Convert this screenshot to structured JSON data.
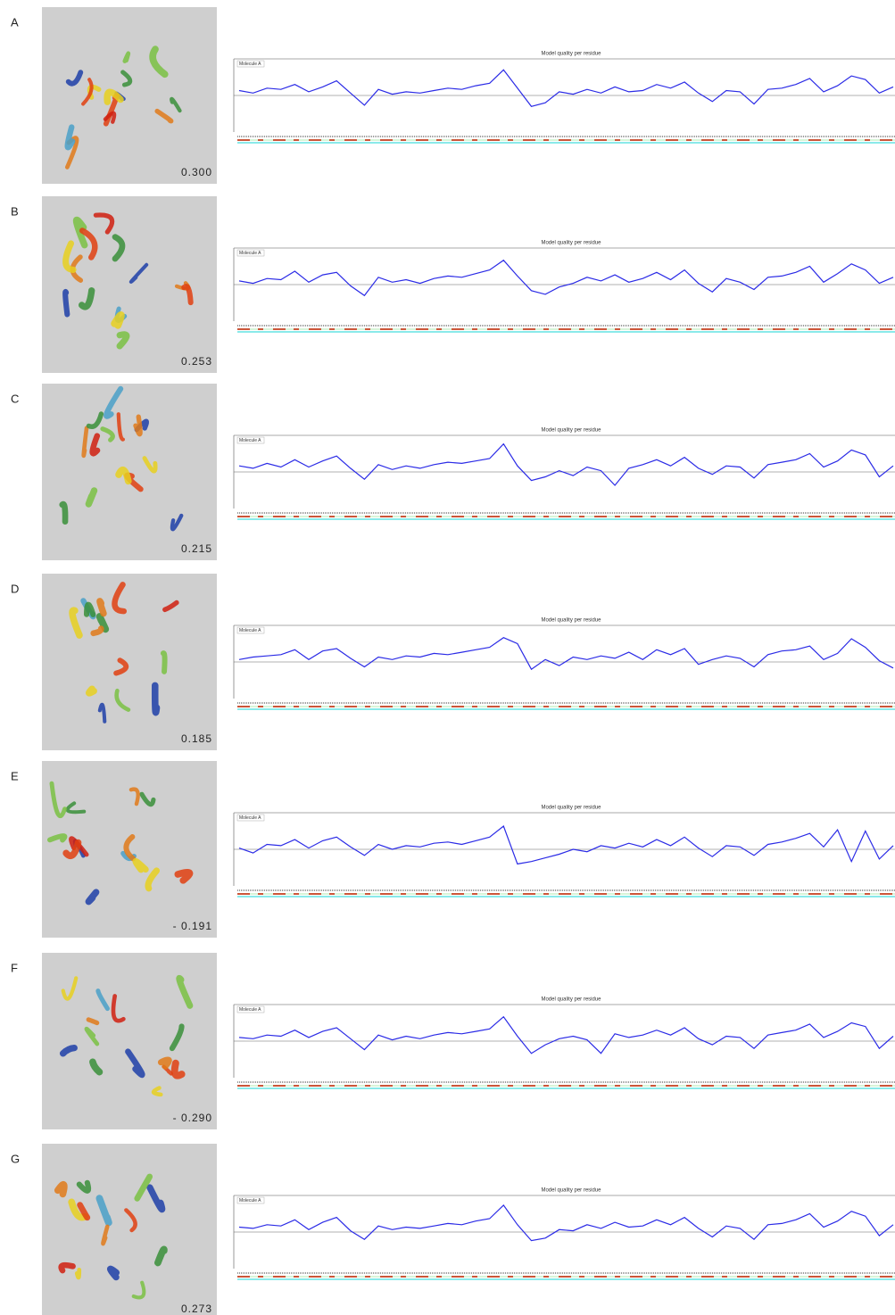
{
  "panels": [
    {
      "label": "A",
      "score": "0.300"
    },
    {
      "label": "B",
      "score": "0.253"
    },
    {
      "label": "C",
      "score": "0.215"
    },
    {
      "label": "D",
      "score": "0.185"
    },
    {
      "label": "E",
      "score": "- 0.191"
    },
    {
      "label": "F",
      "score": "- 0.290"
    },
    {
      "label": "G",
      "score": "0.273"
    }
  ],
  "chart_data": [
    {
      "type": "line",
      "title": "Model quality per residue",
      "ylim": [
        -3,
        3
      ],
      "series": [
        {
          "name": "Molecule A",
          "color": "#2b2be6",
          "values": [
            0.4,
            0.2,
            0.6,
            0.5,
            0.9,
            0.3,
            0.7,
            1.2,
            0.2,
            -0.8,
            0.5,
            0.1,
            0.3,
            0.2,
            0.4,
            0.6,
            0.5,
            0.8,
            1.0,
            2.1,
            0.6,
            -0.9,
            -0.6,
            0.3,
            0.1,
            0.5,
            0.2,
            0.7,
            0.3,
            0.4,
            0.9,
            0.6,
            1.1,
            0.2,
            -0.5,
            0.4,
            0.3,
            -0.7,
            0.5,
            0.6,
            0.9,
            1.4,
            0.3,
            0.8,
            1.6,
            1.3,
            0.2,
            0.7
          ]
        }
      ]
    },
    {
      "type": "line",
      "title": "Model quality per residue",
      "ylim": [
        -3,
        3
      ],
      "series": [
        {
          "name": "Molecule A",
          "color": "#2b2be6",
          "values": [
            0.3,
            0.1,
            0.5,
            0.4,
            1.1,
            0.2,
            0.8,
            1.0,
            -0.1,
            -0.9,
            0.6,
            0.2,
            0.4,
            0.1,
            0.5,
            0.7,
            0.6,
            0.9,
            1.2,
            2.0,
            0.7,
            -0.5,
            -0.8,
            -0.2,
            0.1,
            0.6,
            0.3,
            0.8,
            0.2,
            0.5,
            1.0,
            0.4,
            1.2,
            0.1,
            -0.6,
            0.5,
            0.2,
            -0.4,
            0.6,
            0.7,
            1.0,
            1.5,
            0.2,
            0.9,
            1.7,
            1.2,
            0.1,
            0.6
          ]
        }
      ]
    },
    {
      "type": "line",
      "title": "Model quality per residue",
      "ylim": [
        -3,
        3
      ],
      "series": [
        {
          "name": "Molecule A",
          "color": "#2b2be6",
          "values": [
            0.5,
            0.3,
            0.7,
            0.4,
            1.0,
            0.4,
            0.9,
            1.3,
            0.3,
            -0.6,
            0.6,
            0.2,
            0.5,
            0.3,
            0.6,
            0.8,
            0.7,
            0.9,
            1.1,
            2.3,
            0.5,
            -0.7,
            -0.4,
            0.1,
            -0.3,
            0.4,
            0.1,
            -1.1,
            0.3,
            0.6,
            1.0,
            0.5,
            1.2,
            0.3,
            -0.2,
            0.5,
            0.4,
            -0.5,
            0.6,
            0.8,
            1.0,
            1.5,
            0.4,
            0.9,
            1.8,
            1.4,
            -0.4,
            0.5
          ]
        }
      ]
    },
    {
      "type": "line",
      "title": "Model quality per residue",
      "ylim": [
        -3,
        3
      ],
      "series": [
        {
          "name": "Molecule A",
          "color": "#2b2be6",
          "values": [
            0.2,
            0.4,
            0.5,
            0.6,
            1.0,
            0.2,
            0.9,
            1.1,
            0.3,
            -0.4,
            0.4,
            0.2,
            0.5,
            0.4,
            0.7,
            0.6,
            0.8,
            1.0,
            1.2,
            2.0,
            1.5,
            -0.6,
            0.2,
            -0.3,
            0.4,
            0.2,
            0.5,
            0.3,
            0.8,
            0.2,
            1.0,
            0.6,
            1.1,
            -0.2,
            0.2,
            0.5,
            0.3,
            -0.4,
            0.6,
            0.9,
            1.0,
            1.3,
            0.2,
            0.7,
            1.9,
            1.2,
            0.1,
            -0.5
          ]
        }
      ]
    },
    {
      "type": "line",
      "title": "Model quality per residue",
      "ylim": [
        -3,
        3
      ],
      "series": [
        {
          "name": "Molecule A",
          "color": "#2b2be6",
          "values": [
            0.1,
            -0.3,
            0.4,
            0.3,
            0.8,
            0.1,
            0.7,
            1.0,
            0.2,
            -0.5,
            0.4,
            0.0,
            0.3,
            0.2,
            0.5,
            0.6,
            0.4,
            0.7,
            1.0,
            1.9,
            -1.2,
            -1.0,
            -0.7,
            -0.4,
            0.0,
            -0.2,
            0.3,
            0.1,
            0.5,
            0.2,
            0.8,
            0.3,
            1.0,
            0.1,
            -0.6,
            0.3,
            0.2,
            -0.5,
            0.4,
            0.6,
            0.9,
            1.3,
            0.2,
            1.6,
            -1.0,
            1.5,
            -0.8,
            0.3
          ]
        }
      ]
    },
    {
      "type": "line",
      "title": "Model quality per residue",
      "ylim": [
        -3,
        3
      ],
      "series": [
        {
          "name": "Molecule A",
          "color": "#2b2be6",
          "values": [
            0.3,
            0.2,
            0.5,
            0.4,
            0.9,
            0.3,
            0.8,
            1.1,
            0.2,
            -0.7,
            0.5,
            0.1,
            0.4,
            0.2,
            0.5,
            0.7,
            0.6,
            0.8,
            1.0,
            2.0,
            0.4,
            -1.0,
            -0.3,
            0.2,
            0.4,
            0.1,
            -1.0,
            0.6,
            0.3,
            0.5,
            0.9,
            0.5,
            1.1,
            0.2,
            -0.3,
            0.4,
            0.3,
            -0.6,
            0.5,
            0.7,
            0.9,
            1.4,
            0.3,
            0.8,
            1.5,
            1.2,
            -0.6,
            0.4
          ]
        }
      ]
    },
    {
      "type": "line",
      "title": "Model quality per residue",
      "ylim": [
        -3,
        3
      ],
      "series": [
        {
          "name": "Molecule A",
          "color": "#2b2be6",
          "values": [
            0.4,
            0.3,
            0.6,
            0.5,
            1.0,
            0.2,
            0.8,
            1.2,
            0.1,
            -0.6,
            0.5,
            0.2,
            0.4,
            0.3,
            0.5,
            0.7,
            0.6,
            0.9,
            1.1,
            2.2,
            0.6,
            -0.7,
            -0.5,
            0.2,
            0.1,
            0.6,
            0.3,
            0.8,
            0.4,
            0.5,
            1.0,
            0.6,
            1.2,
            0.3,
            -0.4,
            0.5,
            0.3,
            -0.6,
            0.6,
            0.7,
            1.0,
            1.5,
            0.4,
            0.9,
            1.7,
            1.3,
            -0.3,
            0.6
          ]
        }
      ]
    }
  ]
}
